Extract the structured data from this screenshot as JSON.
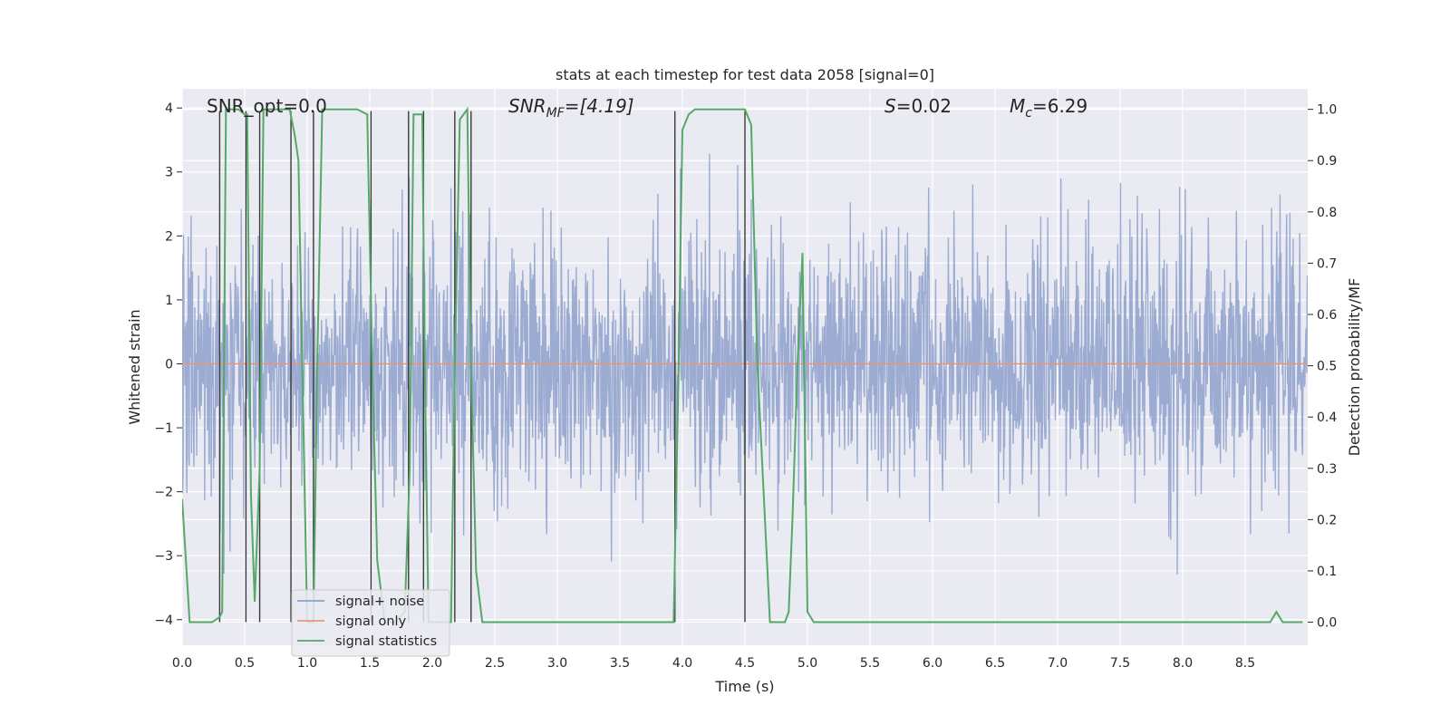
{
  "chart_data": {
    "type": "line",
    "title": "stats at each timestep for test data 2058 [signal=0]",
    "xlabel": "Time (s)",
    "ylabel": "Whitened strain",
    "y2label": "Detection probability/MF",
    "xlim": [
      0.0,
      9.0
    ],
    "ylim": [
      -4.4,
      4.3
    ],
    "y2lim": [
      -0.045,
      1.04
    ],
    "xticks": [
      "0.0",
      "0.5",
      "1.0",
      "1.5",
      "2.0",
      "2.5",
      "3.0",
      "3.5",
      "4.0",
      "4.5",
      "5.0",
      "5.5",
      "6.0",
      "6.5",
      "7.0",
      "7.5",
      "8.0",
      "8.5"
    ],
    "yticks": [
      "4",
      "3",
      "2",
      "1",
      "0",
      "−1",
      "−2",
      "−3",
      "−4"
    ],
    "y2ticks": [
      "0.0",
      "0.1",
      "0.2",
      "0.3",
      "0.4",
      "0.5",
      "0.6",
      "0.7",
      "0.8",
      "0.9",
      "1.0"
    ],
    "grid": true,
    "legend_location": "lower-left",
    "series": [
      {
        "name": "signal+ noise",
        "color": "#8da0cb",
        "kind": "noise",
        "description": "whitened noise, amplitude mostly within about ±2.5, peaks near ±4",
        "mean": 0.0,
        "std": 1.0
      },
      {
        "name": "signal only",
        "color": "#e8967a",
        "kind": "flat",
        "value": 0.0
      },
      {
        "name": "signal statistics",
        "color": "#55a868",
        "kind": "line",
        "axis": "right",
        "x": [
          0.0,
          0.06,
          0.12,
          0.18,
          0.24,
          0.3,
          0.32,
          0.35,
          0.4,
          0.45,
          0.5,
          0.52,
          0.55,
          0.58,
          0.62,
          0.65,
          0.68,
          0.71,
          0.75,
          0.8,
          0.86,
          0.9,
          0.93,
          0.96,
          1.0,
          1.05,
          1.08,
          1.12,
          1.2,
          1.3,
          1.4,
          1.48,
          1.52,
          1.56,
          1.62,
          1.7,
          1.78,
          1.82,
          1.85,
          1.88,
          1.92,
          1.94,
          1.97,
          2.0,
          2.05,
          2.1,
          2.15,
          2.18,
          2.22,
          2.25,
          2.28,
          2.31,
          2.35,
          2.4,
          2.45,
          2.6,
          2.8,
          3.0,
          3.2,
          3.4,
          3.6,
          3.8,
          3.93,
          3.97,
          4.0,
          4.05,
          4.1,
          4.2,
          4.3,
          4.4,
          4.45,
          4.5,
          4.55,
          4.6,
          4.7,
          4.78,
          4.82,
          4.85,
          4.88,
          4.92,
          4.96,
          5.0,
          5.05,
          5.1,
          5.5,
          6.0,
          6.5,
          7.0,
          7.5,
          8.0,
          8.4,
          8.65,
          8.7,
          8.75,
          8.8,
          8.85,
          8.9,
          8.96
        ],
        "values": [
          0.24,
          0.0,
          0.0,
          0.0,
          0.0,
          0.01,
          0.02,
          1.0,
          1.0,
          1.0,
          0.99,
          0.99,
          0.25,
          0.04,
          0.3,
          1.0,
          1.0,
          1.0,
          1.0,
          1.0,
          1.0,
          0.95,
          0.9,
          0.5,
          0.0,
          0.0,
          0.5,
          1.0,
          1.0,
          1.0,
          1.0,
          0.99,
          0.5,
          0.12,
          0.0,
          0.0,
          0.02,
          0.3,
          0.99,
          0.99,
          0.99,
          0.5,
          0.0,
          0.0,
          0.0,
          0.0,
          0.0,
          0.5,
          0.98,
          0.99,
          1.0,
          0.5,
          0.1,
          0.0,
          0.0,
          0.0,
          0.0,
          0.0,
          0.0,
          0.0,
          0.0,
          0.0,
          0.0,
          0.5,
          0.96,
          0.99,
          1.0,
          1.0,
          1.0,
          1.0,
          1.0,
          1.0,
          0.97,
          0.5,
          0.0,
          0.0,
          0.0,
          0.02,
          0.2,
          0.5,
          0.72,
          0.02,
          0.0,
          0.0,
          0.0,
          0.0,
          0.0,
          0.0,
          0.0,
          0.0,
          0.0,
          0.0,
          0.0,
          0.02,
          0.0,
          0.0,
          0.0,
          0.0
        ]
      },
      {
        "name": "detection markers",
        "color": "#3a3a3a",
        "kind": "vlines",
        "legend": false,
        "x": [
          0.3,
          0.51,
          0.62,
          0.87,
          1.05,
          1.51,
          1.81,
          1.93,
          2.18,
          2.31,
          3.94,
          4.5
        ]
      }
    ],
    "annotations": [
      {
        "id": "snr_opt",
        "text": "SNR_opt=0.0"
      },
      {
        "id": "snr_mf",
        "text": "SNR",
        "sub": "MF",
        "suffix": "=[4.19]"
      },
      {
        "id": "s",
        "text": "S",
        "suffix": "=0.02"
      },
      {
        "id": "mc",
        "text": "M",
        "sub": "c",
        "suffix": "=6.29"
      }
    ],
    "colors": {
      "plot_background": "#eaeaf2",
      "grid": "#ffffff",
      "text": "#262626"
    }
  }
}
